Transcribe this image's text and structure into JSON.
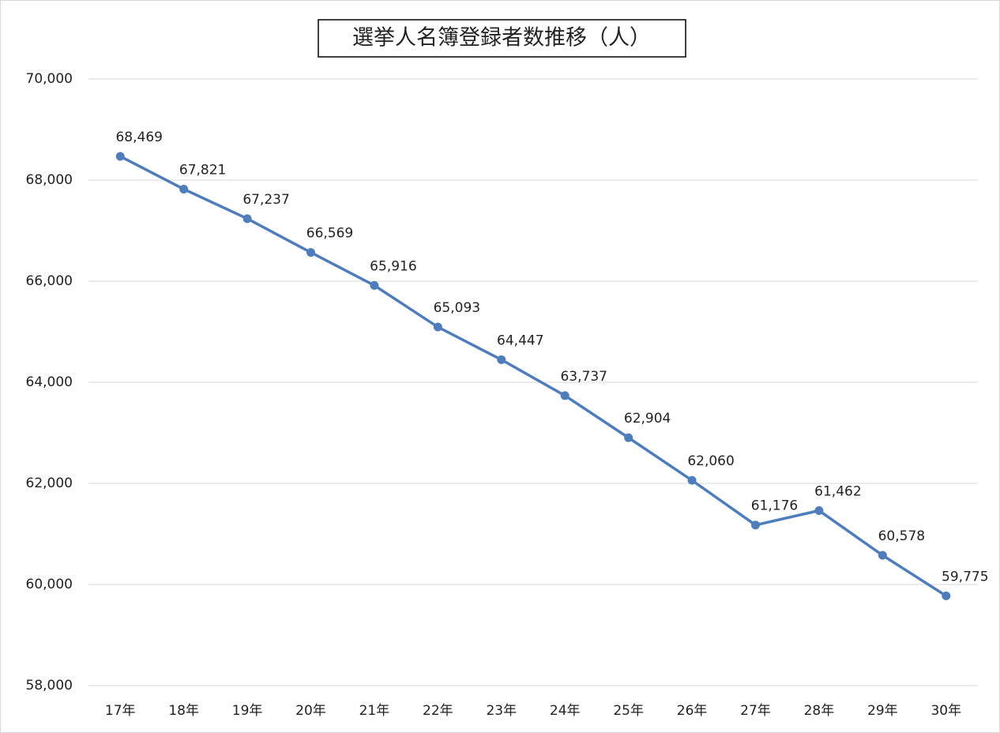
{
  "chart_data": {
    "type": "line",
    "title": "選挙人名簿登録者数推移（人）",
    "categories": [
      "17年",
      "18年",
      "19年",
      "20年",
      "21年",
      "22年",
      "23年",
      "24年",
      "25年",
      "26年",
      "27年",
      "28年",
      "29年",
      "30年"
    ],
    "series": [
      {
        "name": "選挙人名簿登録者数",
        "color": "#4f7dbb",
        "values": [
          68469,
          67821,
          67237,
          66569,
          65916,
          65093,
          64447,
          63737,
          62904,
          62060,
          61176,
          61462,
          60578,
          59775
        ],
        "value_labels": [
          "68,469",
          "67,821",
          "67,237",
          "66,569",
          "65,916",
          "65,093",
          "64,447",
          "63,737",
          "62,904",
          "62,060",
          "61,176",
          "61,462",
          "60,578",
          "59,775"
        ]
      }
    ],
    "ylim": [
      58000,
      70000
    ],
    "yticks": [
      {
        "value": 58000,
        "label": "58,000"
      },
      {
        "value": 60000,
        "label": "60,000"
      },
      {
        "value": 62000,
        "label": "62,000"
      },
      {
        "value": 64000,
        "label": "64,000"
      },
      {
        "value": 66000,
        "label": "66,000"
      },
      {
        "value": 68000,
        "label": "68,000"
      },
      {
        "value": 70000,
        "label": "70,000"
      }
    ],
    "grid": true
  }
}
